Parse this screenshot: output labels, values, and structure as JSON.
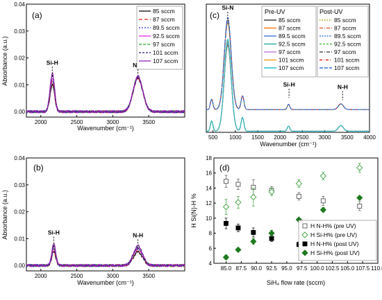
{
  "chart_data": [
    {
      "panel": "(a)",
      "type": "line",
      "xlabel": "Wavenumber (cm⁻¹)",
      "ylabel": "Absorbance (a.u.)",
      "xlim": [
        1800,
        4000
      ],
      "ylim": [
        -0.002,
        0.04
      ],
      "xticks": [
        "2000",
        "2500",
        "3000",
        "3500"
      ],
      "yticks": [
        "0.00",
        "0.01",
        "0.02",
        "0.03",
        "0.04"
      ],
      "legend": [
        "85 sccm",
        "87 sccm",
        "89.5 sccm",
        "92.5 sccm",
        "97 sccm",
        "101 sccm",
        "107 sccm"
      ],
      "legend_position": "top-right",
      "annotations": [
        {
          "text": "Si-H",
          "x": 2160,
          "y": 0.0175
        },
        {
          "text": "N-H",
          "x": 3350,
          "y": 0.0165
        }
      ],
      "peaks": [
        {
          "name": "Si-H",
          "center": 2160,
          "width": 45,
          "heights": [
            0.01,
            0.011,
            0.0118,
            0.0125,
            0.0132,
            0.0137,
            0.0143
          ]
        },
        {
          "name": "N-H",
          "center": 3350,
          "width": 95,
          "heights": [
            0.0123,
            0.0125,
            0.0127,
            0.0128,
            0.0129,
            0.013,
            0.0131
          ]
        }
      ]
    },
    {
      "panel": "(b)",
      "type": "line",
      "xlabel": "Wavenumber (cm⁻¹)",
      "ylabel": "Absorbance (a.u.)",
      "xlim": [
        1800,
        4000
      ],
      "ylim": [
        -0.002,
        0.04
      ],
      "xticks": [
        "2000",
        "2500",
        "3000",
        "3500"
      ],
      "yticks": [
        "0.00",
        "0.01",
        "0.02",
        "0.03",
        "0.04"
      ],
      "annotations": [
        {
          "text": "Si-H",
          "x": 2180,
          "y": 0.0115
        },
        {
          "text": "N-H",
          "x": 3350,
          "y": 0.0105
        }
      ],
      "peaks": [
        {
          "name": "Si-H",
          "center": 2180,
          "width": 40,
          "heights": [
            0.005,
            0.0055,
            0.006,
            0.0065,
            0.007,
            0.0075,
            0.008
          ]
        },
        {
          "name": "N-H",
          "center": 3350,
          "width": 90,
          "heights": [
            0.005,
            0.0056,
            0.006,
            0.0064,
            0.0068,
            0.007,
            0.0073
          ]
        }
      ]
    },
    {
      "panel": "(c)",
      "type": "line",
      "xlabel": "Wavenumber (cm⁻¹)",
      "ylabel": "",
      "xlim": [
        350,
        4000
      ],
      "ylim": [
        0,
        0.225
      ],
      "xticks": [
        "500",
        "1000",
        "1500",
        "2000",
        "2500",
        "3000",
        "3500",
        "4000"
      ],
      "legend_pre_title": "Pre-UV",
      "legend_post_title": "Post-UV",
      "legend": [
        "85 sccm",
        "87 sccm",
        "89.5 sccm",
        "92.5 sccm",
        "97 sccm",
        "101 sccm",
        "107 sccm"
      ],
      "annotations": [
        {
          "text": "Si-N",
          "x": 830,
          "y": 0.215
        },
        {
          "text": "Si-H",
          "x": 2200,
          "y": 0.08
        },
        {
          "text": "N-H",
          "x": 3400,
          "y": 0.076
        }
      ],
      "post_offset": 0.04,
      "peaks": [
        {
          "name": "Si-N",
          "center": 830,
          "width": 110,
          "height": 0.155
        },
        {
          "name": "Si-N shoulder",
          "center": 1160,
          "width": 45,
          "height": 0.024
        },
        {
          "name": "low",
          "center": 470,
          "width": 40,
          "height": 0.018
        },
        {
          "name": "Si-H",
          "center": 2190,
          "width": 40,
          "height": 0.009
        },
        {
          "name": "N-H",
          "center": 3360,
          "width": 80,
          "height": 0.01
        }
      ]
    },
    {
      "panel": "(d)",
      "type": "scatter",
      "xlabel": "SiH₄ flow rate (sccm)",
      "ylabel": "H Si(N)-H %",
      "xlim": [
        83,
        110
      ],
      "ylim": [
        4,
        18
      ],
      "xticks": [
        "85.0",
        "87.5",
        "90.0",
        "92.5",
        "95.0",
        "97.5",
        "100.0",
        "102.5",
        "105.0",
        "107.5",
        "110.0"
      ],
      "yticks": [
        "4",
        "6",
        "8",
        "10",
        "12",
        "14",
        "16",
        "18"
      ],
      "x": [
        85,
        87,
        89.5,
        92.5,
        97,
        101,
        107
      ],
      "legend_position": "bottom-right",
      "series": [
        {
          "name": "H N-H% (pre UV)",
          "values": [
            14.9,
            14.5,
            14.1,
            13.7,
            12.9,
            12.3,
            11.6
          ],
          "err": [
            0.8,
            0.7,
            1.0,
            0.5,
            0.5,
            0.6,
            0.6
          ]
        },
        {
          "name": "H Si-H% (pre UV)",
          "values": [
            11.5,
            12.1,
            12.8,
            13.5,
            14.6,
            15.6,
            16.7
          ],
          "err": [
            1.0,
            0.8,
            1.2,
            0.5,
            0.5,
            0.5,
            0.6
          ]
        },
        {
          "name": "H N-H% (post UV)",
          "values": [
            9.3,
            8.7,
            8.1,
            7.3,
            6.5,
            5.6,
            5.0
          ],
          "err": [
            0.7,
            0.5,
            0.6,
            0.4,
            0.3,
            0.4,
            0.3
          ]
        },
        {
          "name": "H Si-H% (post UV)",
          "values": [
            4.8,
            5.8,
            6.9,
            8.0,
            9.8,
            11.1,
            12.7
          ],
          "err": [
            0.3,
            0.1,
            0.4,
            0.4,
            0.2,
            0.3,
            0.2
          ]
        }
      ]
    }
  ],
  "colors": {
    "series": [
      "#000000",
      "#e8221b",
      "#2b2bc0",
      "#e020e0",
      "#20a020",
      "#1f1f7a",
      "#8e1cb0"
    ],
    "c_pre": [
      "#404040",
      "#f08020",
      "#4a7fd0",
      "#2fb0a0",
      "#c080e0",
      "#f0a020",
      "#20c0d0"
    ],
    "c_post": [
      "#a0a000",
      "#f06030",
      "#4080e0",
      "#50c040",
      "#505050",
      "#e02020",
      "#3070e0"
    ],
    "open_square": "#555555",
    "open_diamond": "#3aa03a",
    "filled_square": "#000000",
    "filled_diamond": "#1f7a1f"
  }
}
